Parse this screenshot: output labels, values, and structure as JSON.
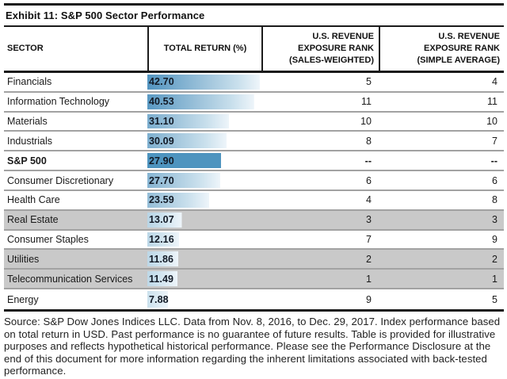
{
  "title": "Exhibit 11: S&P 500 Sector Performance",
  "table": {
    "headers": [
      "SECTOR",
      "TOTAL RETURN (%)",
      "U.S. REVENUE\nEXPOSURE RANK\n(SALES-WEIGHTED)",
      "U.S. REVENUE\nEXPOSURE RANK\n(SIMPLE AVERAGE)"
    ],
    "rows": [
      {
        "sector": "Financials",
        "total_return": "42.70",
        "sales_weighted_rank": "5",
        "simple_average_rank": "4",
        "emphasis": false,
        "shaded": false,
        "bar_style": "gradient"
      },
      {
        "sector": "Information Technology",
        "total_return": "40.53",
        "sales_weighted_rank": "11",
        "simple_average_rank": "11",
        "emphasis": false,
        "shaded": false,
        "bar_style": "gradient"
      },
      {
        "sector": "Materials",
        "total_return": "31.10",
        "sales_weighted_rank": "10",
        "simple_average_rank": "10",
        "emphasis": false,
        "shaded": false,
        "bar_style": "gradient"
      },
      {
        "sector": "Industrials",
        "total_return": "30.09",
        "sales_weighted_rank": "8",
        "simple_average_rank": "7",
        "emphasis": false,
        "shaded": false,
        "bar_style": "gradient"
      },
      {
        "sector": "S&P 500",
        "total_return": "27.90",
        "sales_weighted_rank": "--",
        "simple_average_rank": "--",
        "emphasis": true,
        "shaded": false,
        "bar_style": "solid"
      },
      {
        "sector": "Consumer Discretionary",
        "total_return": "27.70",
        "sales_weighted_rank": "6",
        "simple_average_rank": "6",
        "emphasis": false,
        "shaded": false,
        "bar_style": "gradient"
      },
      {
        "sector": "Health Care",
        "total_return": "23.59",
        "sales_weighted_rank": "4",
        "simple_average_rank": "8",
        "emphasis": false,
        "shaded": false,
        "bar_style": "gradient"
      },
      {
        "sector": "Real Estate",
        "total_return": "13.07",
        "sales_weighted_rank": "3",
        "simple_average_rank": "3",
        "emphasis": false,
        "shaded": true,
        "bar_style": "gradient"
      },
      {
        "sector": "Consumer Staples",
        "total_return": "12.16",
        "sales_weighted_rank": "7",
        "simple_average_rank": "9",
        "emphasis": false,
        "shaded": false,
        "bar_style": "gradient"
      },
      {
        "sector": "Utilities",
        "total_return": "11.86",
        "sales_weighted_rank": "2",
        "simple_average_rank": "2",
        "emphasis": false,
        "shaded": true,
        "bar_style": "gradient"
      },
      {
        "sector": "Telecommunication Services",
        "total_return": "11.49",
        "sales_weighted_rank": "1",
        "simple_average_rank": "1",
        "emphasis": false,
        "shaded": true,
        "bar_style": "gradient"
      },
      {
        "sector": "Energy",
        "total_return": "7.88",
        "sales_weighted_rank": "9",
        "simple_average_rank": "5",
        "emphasis": false,
        "shaded": false,
        "bar_style": "gradient"
      }
    ]
  },
  "chart_data": {
    "type": "table",
    "title": "Exhibit 11: S&P 500 Sector Performance",
    "columns": [
      "SECTOR",
      "TOTAL RETURN (%)",
      "U.S. REVENUE EXPOSURE RANK (SALES-WEIGHTED)",
      "U.S. REVENUE EXPOSURE RANK (SIMPLE AVERAGE)"
    ],
    "categories": [
      "Financials",
      "Information Technology",
      "Materials",
      "Industrials",
      "S&P 500",
      "Consumer Discretionary",
      "Health Care",
      "Real Estate",
      "Consumer Staples",
      "Utilities",
      "Telecommunication Services",
      "Energy"
    ],
    "series": [
      {
        "name": "Total Return (%)",
        "values": [
          42.7,
          40.53,
          31.1,
          30.09,
          27.9,
          27.7,
          23.59,
          13.07,
          12.16,
          11.86,
          11.49,
          7.88
        ]
      },
      {
        "name": "U.S. Revenue Exposure Rank (Sales-Weighted)",
        "values": [
          5,
          11,
          10,
          8,
          null,
          6,
          4,
          3,
          7,
          2,
          1,
          9
        ]
      },
      {
        "name": "U.S. Revenue Exposure Rank (Simple Average)",
        "values": [
          4,
          11,
          10,
          7,
          null,
          6,
          8,
          3,
          9,
          2,
          1,
          5
        ]
      }
    ],
    "bar_column": "TOTAL RETURN (%)",
    "bar_max": 42.7,
    "shaded_categories": [
      "Real Estate",
      "Utilities",
      "Telecommunication Services"
    ]
  },
  "colors": {
    "bar_solid": "#4e94bf",
    "bar_gradient_start": "#5294c0",
    "shaded_row": "#c9c9c9",
    "rule_black": "#1b1b1b",
    "row_divider": "#a2a2a2"
  },
  "footer": {
    "text": "Source: S&P Dow Jones Indices LLC.  Data from Nov. 8, 2016, to Dec. 29, 2017.  Index performance based on total return in USD.  Past performance is no guarantee of future results.  Table is provided for illustrative purposes and reflects hypothetical historical performance.  Please see the Performance Disclosure at the end of this document for more information regarding the inherent limitations associated with back-tested performance."
  }
}
